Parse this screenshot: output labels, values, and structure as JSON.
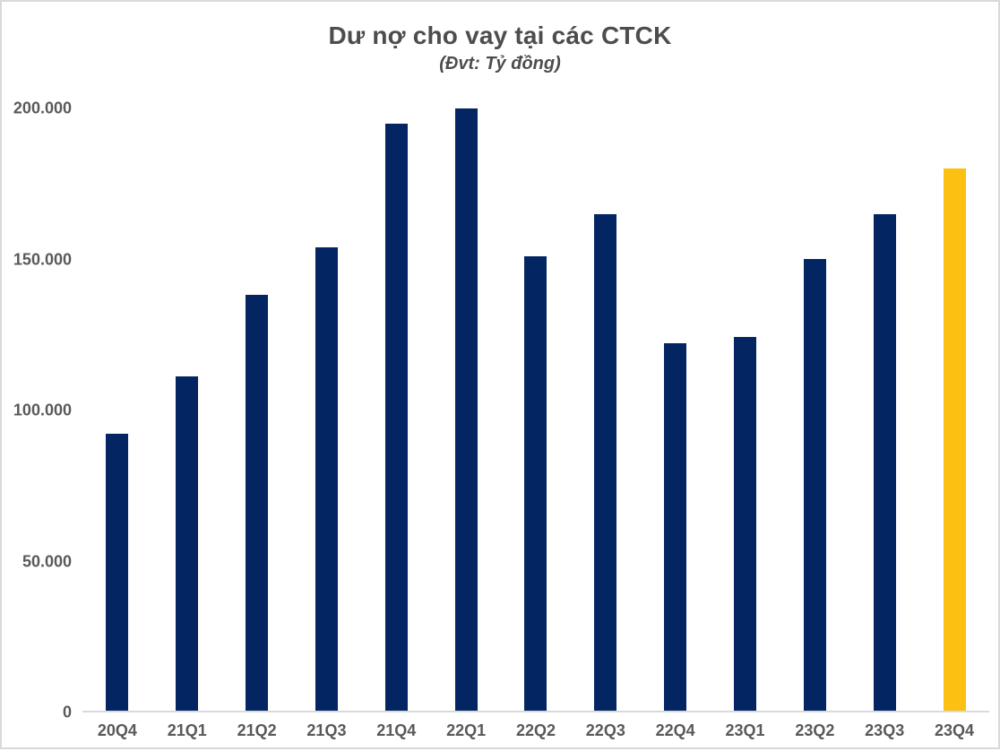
{
  "chart": {
    "title": "Dư nợ cho vay tại các CTCK",
    "subtitle": "(Đvt: Tỷ đồng)"
  },
  "chart_data": {
    "type": "bar",
    "title": "Dư nợ cho vay tại các CTCK",
    "subtitle": "(Đvt: Tỷ đồng)",
    "unit": "Tỷ đồng",
    "categories": [
      "20Q4",
      "21Q1",
      "21Q2",
      "21Q3",
      "21Q4",
      "22Q1",
      "22Q2",
      "22Q3",
      "22Q4",
      "23Q1",
      "23Q2",
      "23Q3",
      "23Q4"
    ],
    "values": [
      92000,
      111000,
      138000,
      154000,
      195000,
      200000,
      151000,
      165000,
      122000,
      124000,
      150000,
      165000,
      180000
    ],
    "highlight_index": 12,
    "xlabel": "",
    "ylabel": "",
    "ylim": [
      0,
      200000
    ],
    "yticks": [
      0,
      50000,
      100000,
      150000,
      200000
    ],
    "ytick_labels": [
      "0",
      "50.000",
      "100.000",
      "150.000",
      "200.000"
    ],
    "grid": false,
    "legend": "none",
    "colors": {
      "bar": "#032663",
      "highlight": "#FCC013",
      "title_text": "#4d4d4d",
      "axis_text": "#595959",
      "axis_line": "#d9d9d9",
      "background": "#ffffff"
    }
  }
}
